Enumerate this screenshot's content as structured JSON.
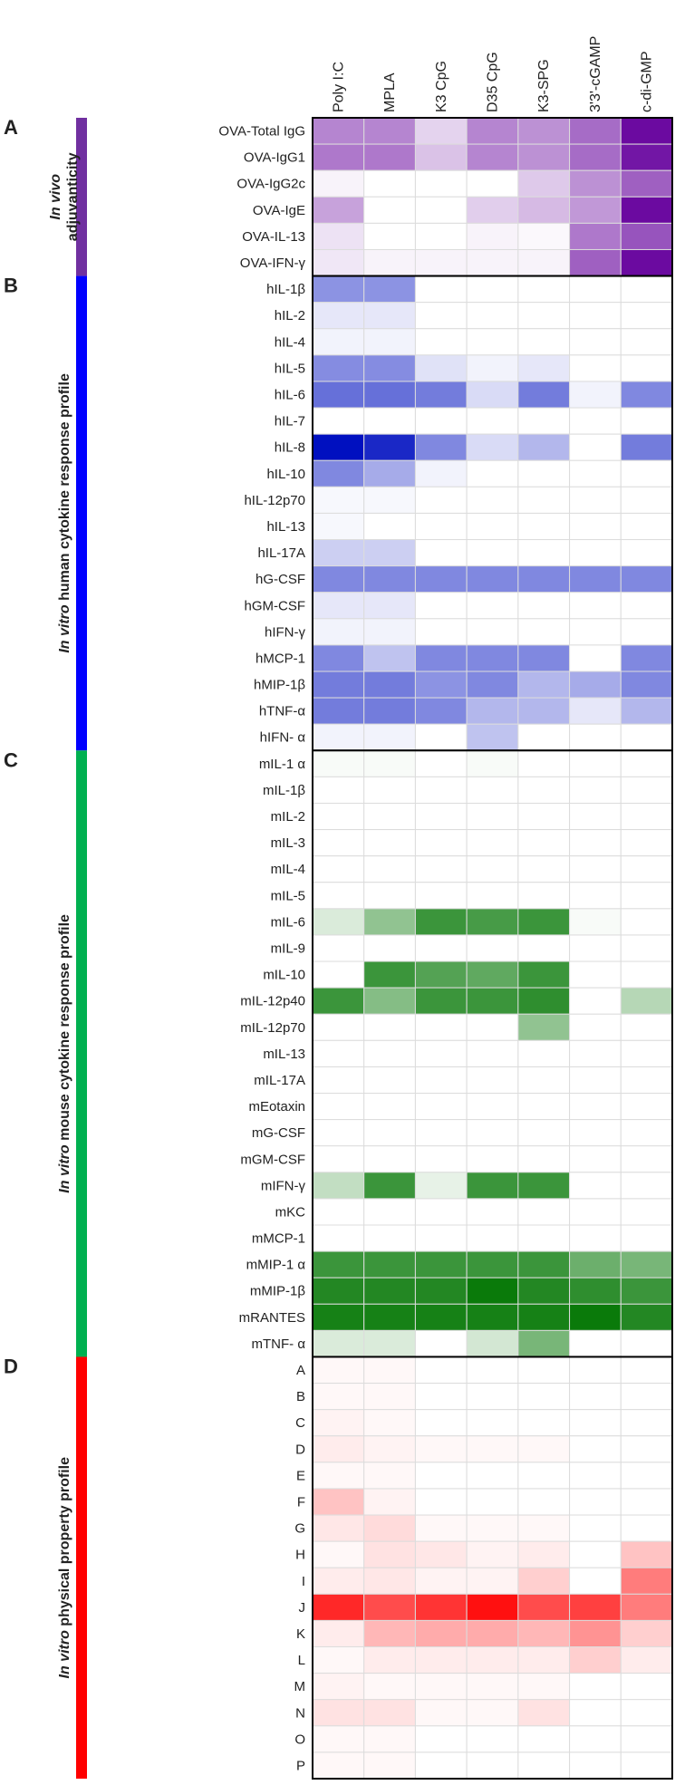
{
  "chart_data": {
    "type": "heatmap",
    "columns": [
      "Poly I:C",
      "MPLA",
      "K3 CpG",
      "D35 CpG",
      "K3-SPG",
      "3'3'-cGAMP",
      "c-di-GMP"
    ],
    "panels": [
      {
        "letter": "A",
        "title_italic": "In vivo",
        "title_rest": "adjuvanticity",
        "colors": {
          "low": "#ffffff",
          "high": "#6b0aa0"
        },
        "bar_color": "#7030a0",
        "rows": [
          "OVA-Total  IgG",
          "OVA-IgG1",
          "OVA-IgG2c",
          "OVA-IgE",
          "OVA-IL-13",
          "OVA-IFN-γ"
        ],
        "values": [
          [
            0.5,
            0.5,
            0.18,
            0.5,
            0.45,
            0.6,
            1.0
          ],
          [
            0.55,
            0.55,
            0.25,
            0.5,
            0.45,
            0.6,
            0.95
          ],
          [
            0.05,
            0.0,
            0.0,
            0.0,
            0.22,
            0.45,
            0.65
          ],
          [
            0.38,
            0.0,
            0.0,
            0.2,
            0.28,
            0.42,
            1.0
          ],
          [
            0.12,
            0.0,
            0.0,
            0.05,
            0.03,
            0.55,
            0.7
          ],
          [
            0.1,
            0.05,
            0.05,
            0.05,
            0.05,
            0.65,
            1.0
          ]
        ]
      },
      {
        "letter": "B",
        "title_italic": "In vitro",
        "title_rest": "human cytokine response profile",
        "colors": {
          "low": "#ffffff",
          "high": "#0010c0"
        },
        "bar_color": "#0000ff",
        "rows": [
          "hIL-1β",
          "hIL-2",
          "hIL-4",
          "hIL-5",
          "hIL-6",
          "hIL-7",
          "hIL-8",
          "hIL-10",
          "hIL-12p70",
          "hIL-13",
          "hIL-17A",
          "hG-CSF",
          "hGM-CSF",
          "hIFN-γ",
          "hMCP-1",
          "hMIP-1β",
          "hTNF-α",
          "hIFN- α"
        ],
        "values": [
          [
            0.45,
            0.45,
            0.0,
            0.0,
            0.0,
            0.0,
            0.0
          ],
          [
            0.1,
            0.1,
            0.0,
            0.0,
            0.0,
            0.0,
            0.0
          ],
          [
            0.05,
            0.05,
            0.0,
            0.0,
            0.0,
            0.0,
            0.0
          ],
          [
            0.48,
            0.48,
            0.12,
            0.05,
            0.1,
            0.0,
            0.0
          ],
          [
            0.6,
            0.6,
            0.55,
            0.15,
            0.55,
            0.05,
            0.5
          ],
          [
            0.0,
            0.0,
            0.0,
            0.0,
            0.0,
            0.0,
            0.0
          ],
          [
            1.0,
            0.9,
            0.5,
            0.15,
            0.3,
            0.0,
            0.55
          ],
          [
            0.5,
            0.35,
            0.05,
            0.0,
            0.0,
            0.0,
            0.0
          ],
          [
            0.03,
            0.03,
            0.0,
            0.0,
            0.0,
            0.0,
            0.0
          ],
          [
            0.03,
            0.0,
            0.0,
            0.0,
            0.0,
            0.0,
            0.0
          ],
          [
            0.2,
            0.2,
            0.0,
            0.0,
            0.0,
            0.0,
            0.0
          ],
          [
            0.5,
            0.5,
            0.5,
            0.5,
            0.5,
            0.5,
            0.5
          ],
          [
            0.1,
            0.1,
            0.0,
            0.0,
            0.0,
            0.0,
            0.0
          ],
          [
            0.05,
            0.05,
            0.0,
            0.0,
            0.0,
            0.0,
            0.0
          ],
          [
            0.5,
            0.25,
            0.5,
            0.5,
            0.5,
            0.0,
            0.5
          ],
          [
            0.55,
            0.55,
            0.45,
            0.5,
            0.3,
            0.35,
            0.5
          ],
          [
            0.55,
            0.55,
            0.5,
            0.3,
            0.3,
            0.1,
            0.3
          ],
          [
            0.05,
            0.05,
            0.0,
            0.25,
            0.0,
            0.0,
            0.0
          ]
        ]
      },
      {
        "letter": "C",
        "title_italic": "In vitro",
        "title_rest": "mouse cytokine response profile",
        "colors": {
          "low": "#ffffff",
          "high": "#0a7a0a"
        },
        "bar_color": "#00b050",
        "rows": [
          "mIL-1 α",
          "mIL-1β",
          "mIL-2",
          "mIL-3",
          "mIL-4",
          "mIL-5",
          "mIL-6",
          "mIL-9",
          "mIL-10",
          "mIL-12p40",
          "mIL-12p70",
          "mIL-13",
          "mIL-17A",
          "mEotaxin",
          "mG-CSF",
          "mGM-CSF",
          "mIFN-γ",
          "mKC",
          "mMCP-1",
          "mMIP-1 α",
          "mMIP-1β",
          "mRANTES",
          "mTNF- α"
        ],
        "values": [
          [
            0.03,
            0.03,
            0.0,
            0.03,
            0.0,
            0.0,
            0.0
          ],
          [
            0.0,
            0.0,
            0.0,
            0.0,
            0.0,
            0.0,
            0.0
          ],
          [
            0.0,
            0.0,
            0.0,
            0.0,
            0.0,
            0.0,
            0.0
          ],
          [
            0.0,
            0.0,
            0.0,
            0.0,
            0.0,
            0.0,
            0.0
          ],
          [
            0.0,
            0.0,
            0.0,
            0.0,
            0.0,
            0.0,
            0.0
          ],
          [
            0.0,
            0.0,
            0.0,
            0.0,
            0.0,
            0.0,
            0.0
          ],
          [
            0.15,
            0.45,
            0.8,
            0.75,
            0.8,
            0.03,
            0.0
          ],
          [
            0.0,
            0.0,
            0.0,
            0.0,
            0.0,
            0.0,
            0.0
          ],
          [
            0.0,
            0.8,
            0.7,
            0.65,
            0.8,
            0.0,
            0.0
          ],
          [
            0.8,
            0.5,
            0.8,
            0.8,
            0.85,
            0.0,
            0.3
          ],
          [
            0.0,
            0.0,
            0.0,
            0.0,
            0.45,
            0.0,
            0.0
          ],
          [
            0.0,
            0.0,
            0.0,
            0.0,
            0.0,
            0.0,
            0.0
          ],
          [
            0.0,
            0.0,
            0.0,
            0.0,
            0.0,
            0.0,
            0.0
          ],
          [
            0.0,
            0.0,
            0.0,
            0.0,
            0.0,
            0.0,
            0.0
          ],
          [
            0.0,
            0.0,
            0.0,
            0.0,
            0.0,
            0.0,
            0.0
          ],
          [
            0.0,
            0.0,
            0.0,
            0.0,
            0.0,
            0.0,
            0.0
          ],
          [
            0.25,
            0.8,
            0.1,
            0.8,
            0.8,
            0.0,
            0.0
          ],
          [
            0.0,
            0.0,
            0.0,
            0.0,
            0.0,
            0.0,
            0.0
          ],
          [
            0.0,
            0.0,
            0.0,
            0.0,
            0.0,
            0.0,
            0.0
          ],
          [
            0.8,
            0.8,
            0.8,
            0.8,
            0.8,
            0.6,
            0.55
          ],
          [
            0.9,
            0.9,
            0.9,
            1.0,
            0.9,
            0.85,
            0.8
          ],
          [
            0.95,
            0.95,
            0.95,
            0.95,
            0.95,
            1.0,
            0.9
          ],
          [
            0.15,
            0.15,
            0.0,
            0.18,
            0.55,
            0.0,
            0.0
          ]
        ]
      },
      {
        "letter": "D",
        "title_italic": "In vitro",
        "title_rest": "physical property  profile",
        "colors": {
          "low": "#ffffff",
          "high": "#ff1010"
        },
        "bar_color": "#ff0000",
        "rows": [
          "A",
          "B",
          "C",
          "D",
          "E",
          "F",
          "G",
          "H",
          "I",
          "J",
          "K",
          "L",
          "M",
          "N",
          "O",
          "P"
        ],
        "values": [
          [
            0.03,
            0.03,
            0.0,
            0.0,
            0.0,
            0.0,
            0.0
          ],
          [
            0.03,
            0.03,
            0.0,
            0.0,
            0.0,
            0.0,
            0.0
          ],
          [
            0.05,
            0.03,
            0.0,
            0.0,
            0.0,
            0.0,
            0.0
          ],
          [
            0.08,
            0.05,
            0.03,
            0.03,
            0.03,
            0.0,
            0.0
          ],
          [
            0.03,
            0.03,
            0.0,
            0.0,
            0.0,
            0.0,
            0.0
          ],
          [
            0.25,
            0.05,
            0.0,
            0.0,
            0.0,
            0.0,
            0.0
          ],
          [
            0.1,
            0.15,
            0.03,
            0.03,
            0.03,
            0.0,
            0.0
          ],
          [
            0.03,
            0.12,
            0.1,
            0.05,
            0.08,
            0.0,
            0.25
          ],
          [
            0.08,
            0.1,
            0.05,
            0.05,
            0.2,
            0.0,
            0.55
          ],
          [
            0.9,
            0.75,
            0.85,
            1.0,
            0.75,
            0.8,
            0.55
          ],
          [
            0.08,
            0.3,
            0.35,
            0.35,
            0.3,
            0.45,
            0.2
          ],
          [
            0.03,
            0.08,
            0.08,
            0.08,
            0.08,
            0.2,
            0.08
          ],
          [
            0.05,
            0.03,
            0.03,
            0.03,
            0.03,
            0.0,
            0.0
          ],
          [
            0.12,
            0.12,
            0.03,
            0.03,
            0.12,
            0.0,
            0.0
          ],
          [
            0.03,
            0.03,
            0.0,
            0.0,
            0.0,
            0.0,
            0.0
          ],
          [
            0.03,
            0.03,
            0.0,
            0.0,
            0.0,
            0.0,
            0.0
          ]
        ]
      }
    ]
  }
}
